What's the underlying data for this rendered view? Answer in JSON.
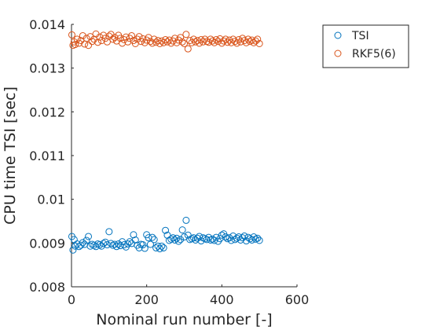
{
  "chart_data": {
    "type": "scatter",
    "title": "",
    "xlabel": "Nominal run number [-]",
    "ylabel": "CPU time TSI [sec]",
    "xlim": [
      0,
      600
    ],
    "ylim": [
      0.008,
      0.014
    ],
    "xticks": [
      0,
      200,
      400,
      600
    ],
    "xtick_labels": [
      "0",
      "200",
      "400",
      "600"
    ],
    "yticks": [
      0.008,
      0.009,
      0.01,
      0.011,
      0.012,
      0.013,
      0.014
    ],
    "ytick_labels": [
      "0.008",
      "0.009",
      "0.01",
      "0.011",
      "0.012",
      "0.013",
      "0.014"
    ],
    "grid": false,
    "legend_position": "top-right outside",
    "marker": "open circle",
    "series": [
      {
        "name": "TSI",
        "color": "#0072BD",
        "x": [
          1,
          4,
          7,
          10,
          15,
          20,
          25,
          30,
          35,
          40,
          45,
          50,
          55,
          60,
          65,
          70,
          75,
          80,
          85,
          90,
          95,
          100,
          105,
          110,
          115,
          120,
          125,
          130,
          135,
          140,
          145,
          150,
          155,
          160,
          165,
          170,
          175,
          180,
          185,
          190,
          195,
          200,
          205,
          210,
          215,
          220,
          225,
          230,
          235,
          240,
          245,
          250,
          255,
          260,
          265,
          270,
          275,
          280,
          285,
          290,
          295,
          300,
          305,
          310,
          315,
          320,
          325,
          330,
          335,
          340,
          345,
          350,
          355,
          360,
          365,
          370,
          375,
          380,
          385,
          390,
          395,
          400,
          405,
          410,
          415,
          420,
          425,
          430,
          435,
          440,
          445,
          450,
          455,
          460,
          465,
          470,
          475,
          480,
          485,
          490,
          495,
          500
        ],
        "y": [
          0.00915,
          0.00884,
          0.00908,
          0.00893,
          0.00898,
          0.00892,
          0.00895,
          0.00901,
          0.00897,
          0.00906,
          0.00915,
          0.00893,
          0.00897,
          0.00895,
          0.00892,
          0.00898,
          0.00896,
          0.00893,
          0.00899,
          0.00902,
          0.00896,
          0.00926,
          0.00899,
          0.00895,
          0.00897,
          0.00892,
          0.00898,
          0.00894,
          0.00903,
          0.00896,
          0.00891,
          0.00898,
          0.00903,
          0.00899,
          0.00919,
          0.00907,
          0.00895,
          0.00889,
          0.00897,
          0.00896,
          0.00888,
          0.00919,
          0.00912,
          0.00897,
          0.00913,
          0.00908,
          0.00889,
          0.00893,
          0.00887,
          0.00893,
          0.00889,
          0.00929,
          0.00918,
          0.00906,
          0.00909,
          0.00912,
          0.00907,
          0.00911,
          0.00904,
          0.00908,
          0.0093,
          0.00914,
          0.00952,
          0.00918,
          0.00908,
          0.0091,
          0.00912,
          0.00907,
          0.00911,
          0.00915,
          0.00905,
          0.00912,
          0.0091,
          0.00908,
          0.00913,
          0.00907,
          0.00909,
          0.00906,
          0.00913,
          0.00904,
          0.0091,
          0.00918,
          0.00921,
          0.00914,
          0.0091,
          0.00912,
          0.00906,
          0.00916,
          0.00908,
          0.00911,
          0.00914,
          0.00907,
          0.00912,
          0.00916,
          0.00905,
          0.00913,
          0.0091,
          0.00907,
          0.00914,
          0.00909,
          0.00911,
          0.00906
        ]
      },
      {
        "name": "RKF5(6)",
        "color": "#D95319",
        "x": [
          1,
          4,
          7,
          10,
          15,
          20,
          25,
          30,
          35,
          40,
          45,
          50,
          55,
          60,
          65,
          70,
          75,
          80,
          85,
          90,
          95,
          100,
          105,
          110,
          115,
          120,
          125,
          130,
          135,
          140,
          145,
          150,
          155,
          160,
          165,
          170,
          175,
          180,
          185,
          190,
          195,
          200,
          205,
          210,
          215,
          220,
          225,
          230,
          235,
          240,
          245,
          250,
          255,
          260,
          265,
          270,
          275,
          280,
          285,
          290,
          295,
          300,
          305,
          310,
          315,
          320,
          325,
          330,
          335,
          340,
          345,
          350,
          355,
          360,
          365,
          370,
          375,
          380,
          385,
          390,
          395,
          400,
          405,
          410,
          415,
          420,
          425,
          430,
          435,
          440,
          445,
          450,
          455,
          460,
          465,
          470,
          475,
          480,
          485,
          490,
          495,
          500
        ],
        "y": [
          0.01376,
          0.01352,
          0.0136,
          0.01354,
          0.01366,
          0.01357,
          0.01363,
          0.01374,
          0.01355,
          0.01368,
          0.01352,
          0.01372,
          0.01361,
          0.01366,
          0.01378,
          0.01359,
          0.01371,
          0.01363,
          0.01375,
          0.01368,
          0.0136,
          0.01373,
          0.01377,
          0.01366,
          0.0137,
          0.01362,
          0.01375,
          0.01368,
          0.01357,
          0.01365,
          0.01371,
          0.0136,
          0.01368,
          0.01374,
          0.01363,
          0.01356,
          0.01366,
          0.01372,
          0.01361,
          0.01367,
          0.01358,
          0.01364,
          0.0137,
          0.01361,
          0.01357,
          0.01366,
          0.01359,
          0.01363,
          0.01356,
          0.01362,
          0.01358,
          0.01365,
          0.0136,
          0.01364,
          0.01357,
          0.01362,
          0.01368,
          0.01358,
          0.01364,
          0.0137,
          0.0136,
          0.01356,
          0.01377,
          0.01344,
          0.01363,
          0.01358,
          0.01366,
          0.0136,
          0.01363,
          0.01357,
          0.01365,
          0.0136,
          0.01366,
          0.01361,
          0.01359,
          0.01366,
          0.01362,
          0.01358,
          0.01365,
          0.01361,
          0.01367,
          0.01357,
          0.01362,
          0.01366,
          0.01359,
          0.01364,
          0.01358,
          0.01366,
          0.01361,
          0.01357,
          0.01365,
          0.0136,
          0.01368,
          0.01363,
          0.01358,
          0.01366,
          0.01361,
          0.01364,
          0.01358,
          0.01362,
          0.01366,
          0.01356
        ]
      }
    ]
  }
}
